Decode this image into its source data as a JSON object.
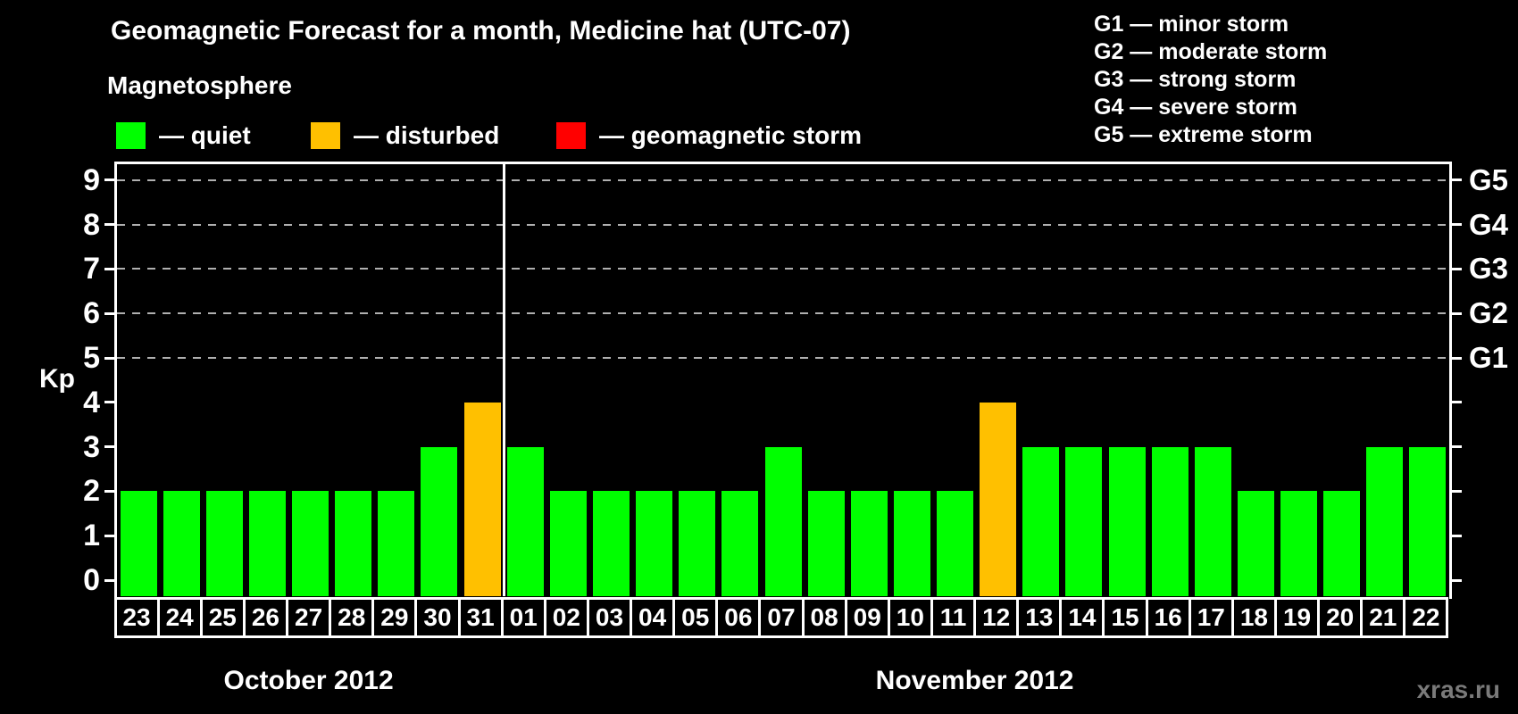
{
  "page": {
    "title": "Geomagnetic Forecast for a month, Medicine hat (UTC-07)",
    "watermark": "xras.ru"
  },
  "legend": {
    "heading": "Magnetosphere",
    "items": [
      {
        "name": "quiet",
        "label": "— quiet",
        "color": "#00ff00"
      },
      {
        "name": "disturbed",
        "label": "— disturbed",
        "color": "#ffc000"
      },
      {
        "name": "storm",
        "label": "— geomagnetic storm",
        "color": "#ff0000"
      }
    ]
  },
  "g_scale_legend": [
    "G1 — minor storm",
    "G2 — moderate storm",
    "G3 — strong storm",
    "G4 — severe storm",
    "G5 — extreme storm"
  ],
  "chart_data": {
    "type": "bar",
    "ylabel": "Kp",
    "ylim": [
      0,
      9
    ],
    "y_ticks": [
      0,
      1,
      2,
      3,
      4,
      5,
      6,
      7,
      8,
      9
    ],
    "grid_levels": [
      5,
      6,
      7,
      8,
      9
    ],
    "right_axis": [
      {
        "level": 5,
        "label": "G1"
      },
      {
        "level": 6,
        "label": "G2"
      },
      {
        "level": 7,
        "label": "G3"
      },
      {
        "level": 8,
        "label": "G4"
      },
      {
        "level": 9,
        "label": "G5"
      }
    ],
    "state_colors": {
      "quiet": "#00ff00",
      "disturbed": "#ffc000",
      "storm": "#ff0000"
    },
    "grid_color": "#b0b0b0",
    "months": [
      {
        "label": "October 2012",
        "days": [
          {
            "day": "23",
            "kp": 2,
            "state": "quiet"
          },
          {
            "day": "24",
            "kp": 2,
            "state": "quiet"
          },
          {
            "day": "25",
            "kp": 2,
            "state": "quiet"
          },
          {
            "day": "26",
            "kp": 2,
            "state": "quiet"
          },
          {
            "day": "27",
            "kp": 2,
            "state": "quiet"
          },
          {
            "day": "28",
            "kp": 2,
            "state": "quiet"
          },
          {
            "day": "29",
            "kp": 2,
            "state": "quiet"
          },
          {
            "day": "30",
            "kp": 3,
            "state": "quiet"
          },
          {
            "day": "31",
            "kp": 4,
            "state": "disturbed"
          }
        ]
      },
      {
        "label": "November 2012",
        "days": [
          {
            "day": "01",
            "kp": 3,
            "state": "quiet"
          },
          {
            "day": "02",
            "kp": 2,
            "state": "quiet"
          },
          {
            "day": "03",
            "kp": 2,
            "state": "quiet"
          },
          {
            "day": "04",
            "kp": 2,
            "state": "quiet"
          },
          {
            "day": "05",
            "kp": 2,
            "state": "quiet"
          },
          {
            "day": "06",
            "kp": 2,
            "state": "quiet"
          },
          {
            "day": "07",
            "kp": 3,
            "state": "quiet"
          },
          {
            "day": "08",
            "kp": 2,
            "state": "quiet"
          },
          {
            "day": "09",
            "kp": 2,
            "state": "quiet"
          },
          {
            "day": "10",
            "kp": 2,
            "state": "quiet"
          },
          {
            "day": "11",
            "kp": 2,
            "state": "quiet"
          },
          {
            "day": "12",
            "kp": 4,
            "state": "disturbed"
          },
          {
            "day": "13",
            "kp": 3,
            "state": "quiet"
          },
          {
            "day": "14",
            "kp": 3,
            "state": "quiet"
          },
          {
            "day": "15",
            "kp": 3,
            "state": "quiet"
          },
          {
            "day": "16",
            "kp": 3,
            "state": "quiet"
          },
          {
            "day": "17",
            "kp": 3,
            "state": "quiet"
          },
          {
            "day": "18",
            "kp": 2,
            "state": "quiet"
          },
          {
            "day": "19",
            "kp": 2,
            "state": "quiet"
          },
          {
            "day": "20",
            "kp": 2,
            "state": "quiet"
          },
          {
            "day": "21",
            "kp": 3,
            "state": "quiet"
          },
          {
            "day": "22",
            "kp": 3,
            "state": "quiet"
          }
        ]
      }
    ]
  }
}
